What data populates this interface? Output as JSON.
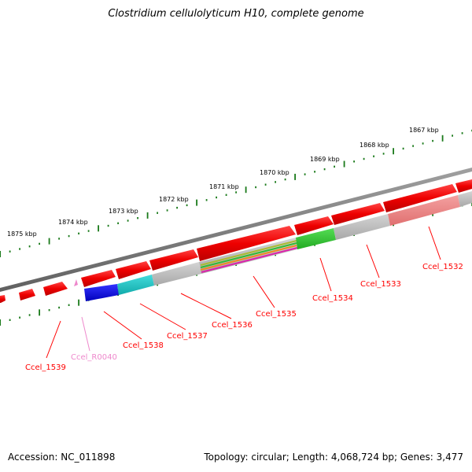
{
  "title": "Clostridium cellulolyticum H10, complete genome",
  "footer": {
    "accession": "Accession: NC_011898",
    "summary": "Topology: circular; Length: 4,068,724 bp; Genes: 3,477"
  },
  "ruler_labels": [
    "1867 kbp",
    "1868 kbp",
    "1869 kbp",
    "1870 kbp",
    "1871 kbp",
    "1872 kbp",
    "1873 kbp",
    "1874 kbp",
    "1875 kbp"
  ],
  "gene_labels": [
    "Ccel_1532",
    "Ccel_1533",
    "Ccel_1534",
    "Ccel_1535",
    "Ccel_1536",
    "Ccel_1537",
    "Ccel_1538",
    "Ccel_R0040",
    "Ccel_1539"
  ],
  "colors": {
    "forward_gene": "#ff0000",
    "rna": "#ee88cc",
    "backbone": "#808080",
    "ruler_tick": "#1a7a1a"
  }
}
